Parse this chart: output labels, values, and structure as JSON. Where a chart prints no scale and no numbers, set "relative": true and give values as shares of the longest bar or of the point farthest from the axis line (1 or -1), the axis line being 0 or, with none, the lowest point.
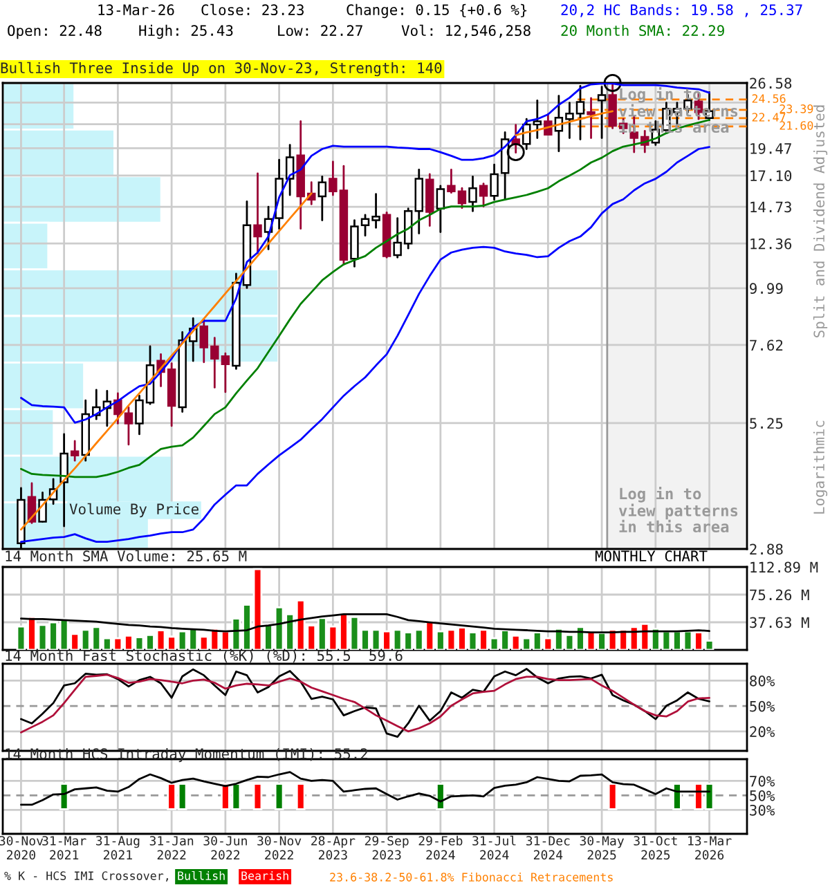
{
  "chart_data": [
    {
      "type": "candlestick",
      "title": "Bullish Three Inside Up on 30-Nov-23, Strength: 140",
      "ylabel": "Split and Dividend Adjusted",
      "categories": [
        "30-Nov\n2020",
        null,
        null,
        null,
        "31-Mar\n2021",
        null,
        null,
        null,
        null,
        "31-Aug\n2021",
        null,
        null,
        null,
        null,
        "31-Jan\n2022",
        null,
        null,
        null,
        null,
        "30-Jun\n2022",
        null,
        null,
        null,
        null,
        "30-Nov\n2022",
        null,
        null,
        null,
        null,
        "28-Apr\n2023",
        null,
        null,
        null,
        null,
        "29-Sep\n2023",
        null,
        null,
        null,
        null,
        "29-Feb\n2024",
        null,
        null,
        null,
        null,
        "31-Jul\n2024",
        null,
        null,
        null,
        null,
        "31-Dec\n2024",
        null,
        null,
        null,
        null,
        "30-May\n2025",
        null,
        null,
        null,
        null,
        "31-Oct\n2025",
        null,
        null,
        null,
        null,
        "13-Mar\n2026"
      ],
      "ohlc": [
        [
          2.96,
          3.85,
          2.88,
          3.64
        ],
        [
          3.69,
          3.94,
          3.26,
          3.28
        ],
        [
          3.28,
          3.77,
          3.28,
          3.64
        ],
        [
          3.65,
          4.02,
          3.57,
          3.83
        ],
        [
          3.96,
          4.98,
          3.21,
          4.54
        ],
        [
          4.59,
          4.82,
          4.39,
          4.5
        ],
        [
          4.51,
          5.85,
          4.39,
          5.48
        ],
        [
          5.45,
          6.15,
          5.35,
          5.66
        ],
        [
          5.64,
          6.12,
          5.18,
          5.82
        ],
        [
          5.85,
          6.05,
          5.24,
          5.48
        ],
        [
          5.5,
          5.66,
          4.74,
          5.24
        ],
        [
          5.24,
          5.98,
          4.98,
          5.85
        ],
        [
          5.79,
          7.57,
          5.75,
          6.92
        ],
        [
          7.07,
          7.29,
          6.26,
          6.7
        ],
        [
          6.78,
          6.98,
          5.18,
          5.7
        ],
        [
          5.66,
          8.1,
          5.54,
          7.79
        ],
        [
          7.76,
          8.65,
          7.06,
          8.24
        ],
        [
          8.33,
          8.61,
          7.02,
          7.53
        ],
        [
          7.57,
          7.88,
          6.22,
          7.14
        ],
        [
          7.22,
          7.32,
          6.09,
          6.95
        ],
        [
          6.9,
          10.7,
          6.8,
          10.25
        ],
        [
          10.14,
          15.1,
          10.0,
          13.49
        ],
        [
          13.49,
          17.27,
          11.81,
          12.78
        ],
        [
          13.06,
          14.73,
          12.03,
          13.89
        ],
        [
          13.95,
          18.42,
          13.27,
          16.83
        ],
        [
          16.83,
          19.78,
          15.58,
          18.65
        ],
        [
          18.81,
          22.14,
          13.27,
          15.48
        ],
        [
          15.68,
          16.55,
          14.91,
          15.24
        ],
        [
          15.48,
          17.01,
          13.81,
          16.55
        ],
        [
          16.83,
          18.26,
          15.58,
          15.85
        ],
        [
          15.92,
          17.88,
          11.19,
          11.44
        ],
        [
          11.49,
          13.81,
          11.08,
          13.41
        ],
        [
          13.49,
          14.17,
          12.84,
          13.89
        ],
        [
          13.81,
          15.65,
          13.33,
          14.05
        ],
        [
          14.17,
          14.33,
          11.57,
          11.64
        ],
        [
          11.69,
          13.95,
          11.57,
          12.41
        ],
        [
          12.36,
          14.6,
          12.08,
          14.43
        ],
        [
          14.43,
          17.58,
          12.97,
          16.83
        ],
        [
          16.76,
          17.2,
          13.45,
          14.37
        ],
        [
          14.6,
          16.27,
          13.06,
          16.02
        ],
        [
          16.27,
          17.58,
          15.75,
          15.85
        ],
        [
          15.85,
          16.09,
          14.65,
          14.97
        ],
        [
          15.07,
          17.01,
          14.43,
          16.09
        ],
        [
          16.27,
          16.45,
          14.75,
          15.52
        ],
        [
          15.52,
          18.01,
          15.24,
          17.2
        ],
        [
          17.3,
          21.0,
          15.24,
          20.31
        ],
        [
          20.31,
          21.76,
          19.07,
          19.87
        ],
        [
          19.87,
          22.38,
          19.4,
          21.8
        ],
        [
          21.8,
          24.45,
          20.45,
          22.14
        ],
        [
          22.14,
          22.9,
          20.78,
          20.78
        ],
        [
          21.15,
          25.0,
          19.2,
          22.53
        ],
        [
          22.38,
          24.18,
          20.45,
          22.98
        ],
        [
          22.98,
          26.2,
          20.31,
          24.28
        ],
        [
          23.13,
          24.72,
          20.45,
          22.9
        ],
        [
          24.45,
          26.1,
          20.45,
          25.1
        ],
        [
          25.1,
          26.58,
          21.42,
          21.66
        ],
        [
          21.9,
          22.38,
          20.92,
          21.42
        ],
        [
          21.0,
          22.6,
          19.11,
          20.45
        ],
        [
          20.55,
          21.15,
          19.11,
          19.78
        ],
        [
          20.0,
          22.14,
          19.78,
          21.28
        ],
        [
          21.23,
          24.18,
          20.92,
          23.5
        ],
        [
          23.13,
          24.18,
          21.9,
          23.5
        ],
        [
          23.5,
          25.1,
          23.13,
          24.45
        ],
        [
          24.34,
          25.3,
          22.38,
          23.13
        ],
        [
          22.48,
          25.43,
          22.27,
          23.23
        ]
      ],
      "series": [
        {
          "name": "20,2 HC Bands: 19.58 , 25.37",
          "type": "line",
          "color": "#0000ff",
          "values": [
            5.92,
            5.72,
            5.69,
            5.68,
            5.66,
            5.26,
            5.34,
            5.48,
            5.66,
            5.83,
            6.05,
            6.26,
            6.33,
            6.7,
            7.14,
            7.72,
            8.29,
            8.55,
            8.55,
            8.55,
            9.51,
            11.32,
            11.84,
            12.78,
            15.41,
            17.12,
            17.58,
            18.78,
            19.4,
            19.7,
            19.62,
            19.62,
            19.62,
            19.62,
            19.62,
            19.53,
            19.49,
            19.4,
            19.4,
            19.11,
            18.78,
            18.42,
            18.42,
            18.56,
            18.84,
            19.62,
            20.72,
            22.14,
            22.38,
            22.88,
            23.96,
            24.77,
            25.9,
            26.4,
            26.5,
            26.5,
            26.3,
            26.3,
            26.3,
            26.3,
            26.2,
            26.0,
            25.9,
            25.8,
            25.37
          ]
        },
        {
          "type": "line",
          "color": "#0000ff",
          "values": [
            2.98,
            3.0,
            3.02,
            3.04,
            3.05,
            3.09,
            3.03,
            2.98,
            2.98,
            3.0,
            3.02,
            3.05,
            3.07,
            3.1,
            3.12,
            3.12,
            3.16,
            3.33,
            3.56,
            3.73,
            3.9,
            3.9,
            4.12,
            4.31,
            4.5,
            4.67,
            4.85,
            5.1,
            5.35,
            5.66,
            5.98,
            6.26,
            6.53,
            6.91,
            7.29,
            7.96,
            8.79,
            9.72,
            10.59,
            11.45,
            11.84,
            12.0,
            12.11,
            12.16,
            12.11,
            11.9,
            11.79,
            11.71,
            11.58,
            11.63,
            12.11,
            12.5,
            12.78,
            13.36,
            14.27,
            14.92,
            15.26,
            15.93,
            16.47,
            16.83,
            17.4,
            18.19,
            18.78,
            19.4,
            19.58
          ]
        },
        {
          "name": "20 Month SMA: 22.29",
          "type": "line",
          "color": "#008000",
          "values": [
            4.22,
            4.12,
            4.1,
            4.09,
            4.08,
            4.06,
            4.06,
            4.06,
            4.1,
            4.16,
            4.24,
            4.3,
            4.47,
            4.64,
            4.69,
            4.72,
            4.9,
            5.18,
            5.48,
            5.66,
            6.05,
            6.43,
            6.82,
            7.37,
            7.96,
            8.61,
            9.27,
            9.8,
            10.37,
            10.79,
            11.19,
            11.42,
            11.64,
            12.11,
            12.5,
            12.92,
            13.27,
            13.81,
            14.17,
            14.58,
            14.75,
            14.75,
            14.75,
            14.81,
            15.07,
            15.24,
            15.41,
            15.58,
            15.82,
            16.09,
            16.64,
            17.09,
            17.58,
            18.19,
            18.61,
            19.2,
            19.62,
            19.83,
            20.05,
            20.4,
            20.92,
            21.38,
            21.71,
            22.0,
            22.29
          ]
        },
        {
          "type": "line",
          "color": "#ff8000",
          "values": [
            3.16,
            3.35,
            3.55,
            3.77,
            4.0,
            4.23,
            4.49,
            4.77,
            5.06,
            5.37,
            5.71,
            6.05,
            6.42,
            6.82,
            7.24,
            7.68,
            8.14,
            8.64,
            9.17,
            9.74,
            10.34,
            10.97,
            11.65,
            12.36,
            13.12,
            13.93,
            14.79,
            15.7,
            null,
            null,
            null,
            null,
            null,
            null,
            null,
            null,
            null,
            null,
            null,
            null,
            null,
            null,
            null,
            null,
            null,
            null,
            20.72,
            21.0,
            21.23,
            21.51,
            21.8,
            22.09,
            22.38,
            22.68,
            22.98,
            23.23,
            null,
            null,
            null,
            null,
            null,
            null,
            null,
            null,
            null
          ]
        },
        {
          "type": "scatter",
          "marker": "circle",
          "color": "#000000",
          "values": [
            null,
            null,
            null,
            null,
            null,
            null,
            null,
            null,
            null,
            null,
            null,
            null,
            null,
            null,
            null,
            null,
            null,
            null,
            null,
            null,
            null,
            null,
            null,
            null,
            null,
            null,
            null,
            null,
            null,
            null,
            null,
            null,
            null,
            null,
            null,
            null,
            null,
            null,
            null,
            null,
            null,
            null,
            null,
            null,
            null,
            null,
            19.11,
            null,
            null,
            null,
            null,
            null,
            null,
            null,
            null,
            26.58,
            null,
            null,
            null,
            null,
            null,
            null,
            null,
            null,
            null
          ]
        }
      ],
      "log": true,
      "ylim": [
        2.88,
        26.58
      ],
      "yticks": [
        2.88,
        5.25,
        7.62,
        9.99,
        12.36,
        14.73,
        {
          "value": 17.1,
          "label": "17.10"
        },
        19.47,
        {
          "value": 21.84,
          "label": null
        },
        {
          "value": 24.21,
          "label": null
        },
        26.58
      ],
      "grid": true,
      "tick_labels": "y",
      "ref_lines": [
        {
          "axis": "y",
          "value": 24.56,
          "label": "24.56",
          "color": "#ff8000",
          "line_style": "dashed"
        },
        {
          "axis": "y",
          "value": 23.39,
          "label": "23.39",
          "color": "#ff8000",
          "line_style": "dashed"
        },
        {
          "axis": "y",
          "value": 22.47,
          "label": "22.47",
          "color": "#ff8000",
          "line_style": "dashed"
        },
        {
          "axis": "y",
          "value": 21.6,
          "label": "21.60",
          "color": "#ff8000",
          "line_style": "dashed"
        }
      ],
      "bands": [
        {
          "axis": "x",
          "from": "30-May\n2025",
          "to": "13-Mar\n2026",
          "color": "#f2f2f2"
        }
      ],
      "annotations": [
        "13-Mar-26",
        "Close: 23.23",
        "Change: 0.15 {+0.6 %}",
        "Open: 22.48",
        "High: 25.43",
        "Low: 22.27",
        "Vol: 12,546,258",
        "Log in to\nview patterns\nin this area",
        "Log in to\nview patterns\nin this area",
        "Logarithmic",
        "23.6-38.2-50-61.8% Fibonacci Retracements"
      ]
    },
    {
      "type": "bar",
      "orientation": "horizontal",
      "relative": true,
      "title": "Volume By Price",
      "color": "#c8f4fa",
      "categories": [
        null,
        null,
        null,
        null,
        null,
        null,
        null,
        null,
        null,
        null
      ],
      "values": [
        0.26,
        0.405,
        0.575,
        0.165,
        1,
        1,
        0.295,
        0.185,
        0.62,
        0.53
      ],
      "tick_labels": false
    },
    {
      "type": "bar",
      "title": "14 Month SMA Volume: 25.65 M",
      "categories": [
        "30-Nov\n2020",
        null,
        null,
        null,
        "31-Mar\n2021",
        null,
        null,
        null,
        null,
        "31-Aug\n2021",
        null,
        null,
        null,
        null,
        "31-Jan\n2022",
        null,
        null,
        null,
        null,
        "30-Jun\n2022",
        null,
        null,
        null,
        null,
        "30-Nov\n2022",
        null,
        null,
        null,
        null,
        "28-Apr\n2023",
        null,
        null,
        null,
        null,
        "29-Sep\n2023",
        null,
        null,
        null,
        null,
        "29-Feb\n2024",
        null,
        null,
        null,
        null,
        "31-Jul\n2024",
        null,
        null,
        null,
        null,
        "31-Dec\n2024",
        null,
        null,
        null,
        null,
        "30-May\n2025",
        null,
        null,
        null,
        null,
        "31-Oct\n2025",
        null,
        null,
        null,
        null,
        "13-Mar\n2026"
      ],
      "series": [
        {
          "type": "bar",
          "values": [
            31.8,
            44.9,
            34.0,
            37.6,
            42.7,
            21.7,
            27.5,
            31.1,
            15.9,
            15.9,
            19.5,
            17.4,
            20.3,
            26.8,
            18.1,
            25.3,
            28.9,
            18.1,
            28.9,
            25.3,
            42.7,
            61.5,
            110,
            34.0,
            57.9,
            48.5,
            67.3,
            33.3,
            43.4,
            31.8,
            49.9,
            44.9,
            27.5,
            27.5,
            25.3,
            27.5,
            23.9,
            27.5,
            38.4,
            25.3,
            27.5,
            30.4,
            23.9,
            27.5,
            15.9,
            26.8,
            19.5,
            15.9,
            23.9,
            15.9,
            28.9,
            20.3,
            31.1,
            25.3,
            23.2,
            27.5,
            27.5,
            31.1,
            35.5,
            28.9,
            25.3,
            25.3,
            25.3,
            23.9,
            12.5
          ],
          "colors": [
            "#1a8f1a",
            "#ff0000",
            "#1a8f1a",
            "#1a8f1a",
            "#1a8f1a",
            "#ff0000",
            "#1a8f1a",
            "#1a8f1a",
            "#1a8f1a",
            "#ff0000",
            "#ff0000",
            "#1a8f1a",
            "#1a8f1a",
            "#ff0000",
            "#ff0000",
            "#1a8f1a",
            "#1a8f1a",
            "#ff0000",
            "#ff0000",
            "#ff0000",
            "#1a8f1a",
            "#1a8f1a",
            "#ff0000",
            "#1a8f1a",
            "#1a8f1a",
            "#1a8f1a",
            "#ff0000",
            "#ff0000",
            "#1a8f1a",
            "#ff0000",
            "#ff0000",
            "#1a8f1a",
            "#1a8f1a",
            "#1a8f1a",
            "#ff0000",
            "#1a8f1a",
            "#1a8f1a",
            "#1a8f1a",
            "#ff0000",
            "#1a8f1a",
            "#ff0000",
            "#ff0000",
            "#1a8f1a",
            "#ff0000",
            "#1a8f1a",
            "#1a8f1a",
            "#ff0000",
            "#1a8f1a",
            "#1a8f1a",
            "#ff0000",
            "#1a8f1a",
            "#1a8f1a",
            "#1a8f1a",
            "#ff0000",
            "#1a8f1a",
            "#ff0000",
            "#ff0000",
            "#ff0000",
            "#ff0000",
            "#1a8f1a",
            "#1a8f1a",
            "#1a8f1a",
            "#1a8f1a",
            "#ff0000",
            "#1a8f1a"
          ]
        },
        {
          "type": "line",
          "color": "#000000",
          "values": [
            42.7,
            42.0,
            42.0,
            41.2,
            40.5,
            39.8,
            39.1,
            38.4,
            36.9,
            35.5,
            34.0,
            33.3,
            31.8,
            31.1,
            29.7,
            28.9,
            28.2,
            27.5,
            26.0,
            25.3,
            26.0,
            26.8,
            31.8,
            33.3,
            35.5,
            38.4,
            41.2,
            43.4,
            45.6,
            47.0,
            48.5,
            48.5,
            48.5,
            48.5,
            48.5,
            44.9,
            40.5,
            39.1,
            37.6,
            36.2,
            34.7,
            33.3,
            31.8,
            30.4,
            28.9,
            28.2,
            27.5,
            26.8,
            26.0,
            25.3,
            25.3,
            24.6,
            24.6,
            23.9,
            23.9,
            23.9,
            24.6,
            24.6,
            25.3,
            25.3,
            25.3,
            25.3,
            26.0,
            26.8,
            25.65
          ]
        }
      ],
      "ylim": [
        0,
        112.89
      ],
      "yticks": [
        {
          "value": 37.63,
          "label": "37.63 M"
        },
        {
          "value": 75.26,
          "label": "75.26 M"
        },
        {
          "value": 112.89,
          "label": "112.89 M"
        }
      ],
      "grid": true,
      "tick_labels": "y",
      "annotations": [
        "MONTHLY CHART"
      ]
    },
    {
      "type": "line",
      "title": "14 Month Fast Stochastic (%K) (%D): 55.5  59.6",
      "categories": [
        "30-Nov\n2020",
        null,
        null,
        null,
        "31-Mar\n2021",
        null,
        null,
        null,
        null,
        "31-Aug\n2021",
        null,
        null,
        null,
        null,
        "31-Jan\n2022",
        null,
        null,
        null,
        null,
        "30-Jun\n2022",
        null,
        null,
        null,
        null,
        "30-Nov\n2022",
        null,
        null,
        null,
        null,
        "28-Apr\n2023",
        null,
        null,
        null,
        null,
        "29-Sep\n2023",
        null,
        null,
        null,
        null,
        "29-Feb\n2024",
        null,
        null,
        null,
        null,
        "31-Jul\n2024",
        null,
        null,
        null,
        null,
        "31-Dec\n2024",
        null,
        null,
        null,
        null,
        "30-May\n2025",
        null,
        null,
        null,
        null,
        "31-Oct\n2025",
        null,
        null,
        null,
        null,
        "13-Mar\n2026"
      ],
      "series": [
        {
          "type": "line",
          "color": "#000000",
          "values": [
            34.6,
            29.5,
            41.0,
            53.5,
            74.3,
            76.9,
            88.2,
            87.0,
            87.6,
            81.9,
            73.1,
            80.7,
            84.5,
            76.9,
            59.8,
            85.1,
            93.3,
            86.4,
            74.3,
            63.0,
            90.8,
            86.4,
            66.1,
            72.5,
            85.1,
            91.4,
            78.8,
            58.5,
            61.1,
            57.9,
            39.0,
            44.0,
            48.4,
            47.2,
            17.5,
            13.7,
            29.5,
            50.3,
            32.7,
            44.0,
            66.1,
            59.8,
            69.3,
            66.8,
            85.1,
            90.8,
            86.4,
            93.9,
            83.8,
            76.9,
            82.6,
            84.5,
            85.1,
            82.6,
            87.0,
            63.0,
            56.7,
            51.6,
            44.0,
            34.6,
            50.3,
            56.7,
            66.1,
            58.5,
            55.5
          ]
        },
        {
          "type": "line",
          "color": "#b0103a",
          "values": [
            18.8,
            25.1,
            31.4,
            39.0,
            53.5,
            69.3,
            84.5,
            85.7,
            87.0,
            83.2,
            77.5,
            78.8,
            81.9,
            80.7,
            78.8,
            76.9,
            80.1,
            81.3,
            77.5,
            70.6,
            74.3,
            76.3,
            75.6,
            74.3,
            78.8,
            82.6,
            78.8,
            71.8,
            67.4,
            63.0,
            58.5,
            54.8,
            47.2,
            39.0,
            32.7,
            26.3,
            20.0,
            23.8,
            29.5,
            37.7,
            50.3,
            57.9,
            64.9,
            66.8,
            68.0,
            75.6,
            81.9,
            84.5,
            84.5,
            81.9,
            80.7,
            80.7,
            81.3,
            81.9,
            74.3,
            68.0,
            59.8,
            51.6,
            44.0,
            39.0,
            37.7,
            44.0,
            55.3,
            59.1,
            59.6
          ]
        }
      ],
      "ylim": [
        -3,
        100
      ],
      "yticks": [
        {
          "value": 20,
          "label": "20%"
        },
        {
          "value": 50,
          "label": "50%"
        },
        {
          "value": 80,
          "label": "80%"
        }
      ],
      "ref_lines": [
        {
          "axis": "y",
          "value": 50,
          "color": "#999999",
          "line_style": "dashed"
        }
      ],
      "grid": true,
      "tick_labels": "y"
    },
    {
      "type": "line",
      "title": "14 Month HCS Intraday Momentum (IMI): 55.2",
      "legend_title": "% K - HCS IMI Crossover,",
      "categories": [
        "30-Nov\n2020",
        null,
        null,
        null,
        "31-Mar\n2021",
        null,
        null,
        null,
        null,
        "31-Aug\n2021",
        null,
        null,
        null,
        null,
        "31-Jan\n2022",
        null,
        null,
        null,
        null,
        "30-Jun\n2022",
        null,
        null,
        null,
        null,
        "30-Nov\n2022",
        null,
        null,
        null,
        null,
        "28-Apr\n2023",
        null,
        null,
        null,
        null,
        "29-Sep\n2023",
        null,
        null,
        null,
        null,
        "29-Feb\n2024",
        null,
        null,
        null,
        null,
        "31-Jul\n2024",
        null,
        null,
        null,
        null,
        "31-Dec\n2024",
        null,
        null,
        null,
        null,
        "30-May\n2025",
        null,
        null,
        null,
        null,
        "31-Oct\n2025",
        null,
        null,
        null,
        null,
        "13-Mar\n2026"
      ],
      "series": [
        {
          "name": "Bullish",
          "type": "bar",
          "color": "#008000",
          "values": [
            null,
            null,
            null,
            null,
            35,
            null,
            null,
            null,
            null,
            null,
            null,
            null,
            null,
            null,
            null,
            35,
            null,
            null,
            null,
            null,
            35,
            null,
            null,
            null,
            35,
            null,
            null,
            null,
            null,
            null,
            null,
            null,
            null,
            null,
            null,
            null,
            null,
            null,
            null,
            35,
            null,
            null,
            null,
            null,
            null,
            null,
            null,
            null,
            null,
            null,
            null,
            null,
            null,
            null,
            null,
            null,
            null,
            null,
            null,
            null,
            null,
            35,
            null,
            null,
            35
          ],
          "base": [
            null,
            null,
            null,
            null,
            31,
            null,
            null,
            null,
            null,
            null,
            null,
            null,
            null,
            null,
            null,
            31,
            null,
            null,
            null,
            null,
            31,
            null,
            null,
            null,
            31,
            null,
            null,
            null,
            null,
            null,
            null,
            null,
            null,
            null,
            null,
            null,
            null,
            null,
            null,
            31,
            null,
            null,
            null,
            null,
            null,
            null,
            null,
            null,
            null,
            null,
            null,
            null,
            null,
            null,
            null,
            null,
            null,
            null,
            null,
            null,
            null,
            31,
            null,
            null,
            31
          ]
        },
        {
          "name": "Bearish",
          "type": "bar",
          "color": "#ff0000",
          "values": [
            null,
            null,
            null,
            null,
            null,
            null,
            null,
            null,
            null,
            null,
            null,
            null,
            null,
            null,
            35,
            null,
            null,
            null,
            null,
            35,
            null,
            null,
            35,
            null,
            null,
            null,
            35,
            null,
            null,
            null,
            null,
            null,
            null,
            null,
            null,
            null,
            null,
            null,
            null,
            null,
            null,
            null,
            null,
            null,
            null,
            null,
            null,
            null,
            null,
            null,
            null,
            null,
            null,
            null,
            null,
            35,
            null,
            null,
            null,
            null,
            null,
            null,
            null,
            35,
            null
          ],
          "base": [
            null,
            null,
            null,
            null,
            null,
            null,
            null,
            null,
            null,
            null,
            null,
            null,
            null,
            null,
            31,
            null,
            null,
            null,
            null,
            31,
            null,
            null,
            31,
            null,
            null,
            null,
            31,
            null,
            null,
            null,
            null,
            null,
            null,
            null,
            null,
            null,
            null,
            null,
            null,
            null,
            null,
            null,
            null,
            null,
            null,
            null,
            null,
            null,
            null,
            null,
            null,
            null,
            null,
            null,
            null,
            31,
            null,
            null,
            null,
            null,
            null,
            null,
            null,
            31,
            null
          ]
        },
        {
          "type": "line",
          "color": "#000000",
          "values": [
            37.1,
            37.1,
            43.5,
            51.3,
            51.9,
            58.4,
            59.7,
            61.0,
            56.5,
            55.2,
            61.6,
            72.6,
            79.0,
            73.9,
            67.4,
            71.3,
            73.2,
            69.4,
            66.1,
            62.9,
            66.1,
            71.3,
            75.8,
            75.2,
            79.0,
            82.3,
            73.2,
            70.0,
            71.3,
            70.0,
            55.2,
            57.1,
            59.0,
            59.7,
            51.9,
            44.2,
            48.7,
            52.6,
            49.4,
            41.6,
            48.7,
            49.4,
            50.0,
            48.7,
            60.3,
            63.5,
            64.8,
            68.1,
            75.2,
            72.6,
            70.0,
            69.4,
            77.1,
            77.7,
            79.0,
            68.1,
            65.5,
            64.8,
            58.4,
            51.9,
            59.7,
            55.2,
            55.2,
            55.2,
            55.2
          ]
        }
      ],
      "ylim": [
        -3,
        100
      ],
      "yticks": [
        {
          "value": 30,
          "label": "30%"
        },
        {
          "value": 50,
          "label": "50%"
        },
        {
          "value": 70,
          "label": "70%"
        }
      ],
      "ref_lines": [
        {
          "axis": "y",
          "value": 50,
          "color": "#999999",
          "line_style": "dashed"
        }
      ],
      "grid": true,
      "legend": "bottom"
    }
  ]
}
